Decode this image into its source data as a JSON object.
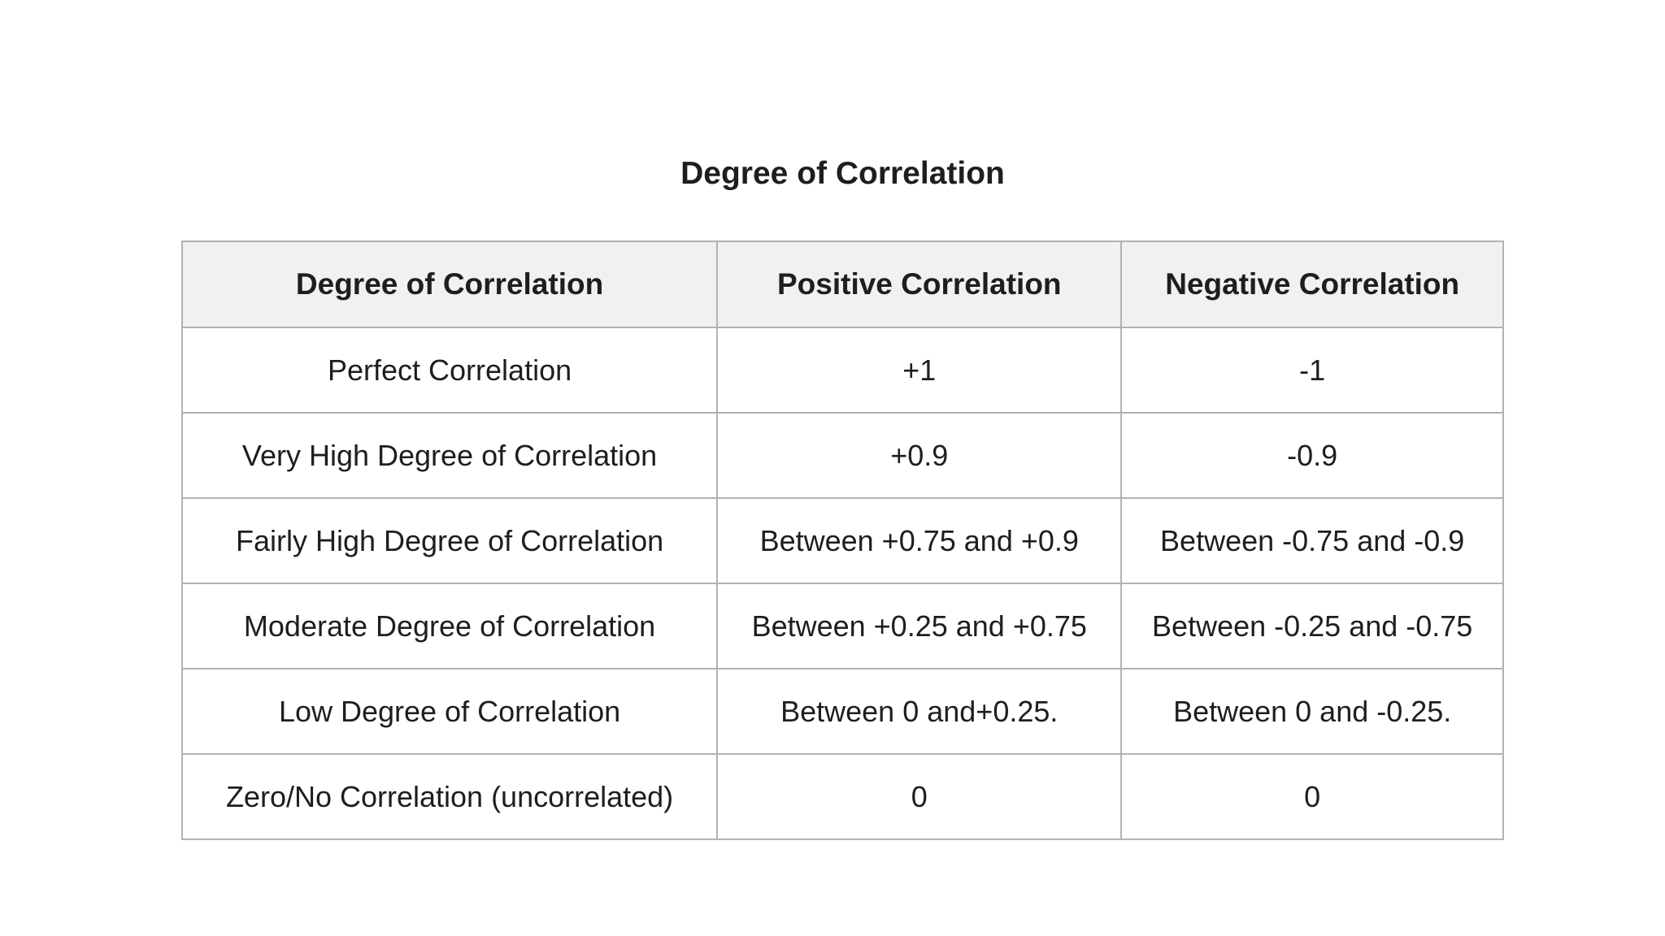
{
  "title": "Degree of Correlation",
  "table": {
    "headers": [
      "Degree of Correlation",
      "Positive Correlation",
      "Negative Correlation"
    ],
    "rows": [
      [
        "Perfect Correlation",
        "+1",
        "-1"
      ],
      [
        "Very High Degree of Correlation",
        "+0.9",
        "-0.9"
      ],
      [
        "Fairly High Degree of Correlation",
        "Between +0.75 and +0.9",
        "Between -0.75 and -0.9"
      ],
      [
        "Moderate Degree of Correlation",
        "Between +0.25 and +0.75",
        "Between -0.25 and -0.75"
      ],
      [
        "Low Degree of Correlation",
        "Between 0 and+0.25.",
        "Between 0 and -0.25."
      ],
      [
        "Zero/No Correlation (uncorrelated)",
        "0",
        "0"
      ]
    ]
  },
  "colors": {
    "page_bg": "#ffffff",
    "header_bg": "#f1f1f1",
    "cell_bg": "#ffffff",
    "border": "#b2b2b2",
    "text": "#1e1e1e"
  }
}
